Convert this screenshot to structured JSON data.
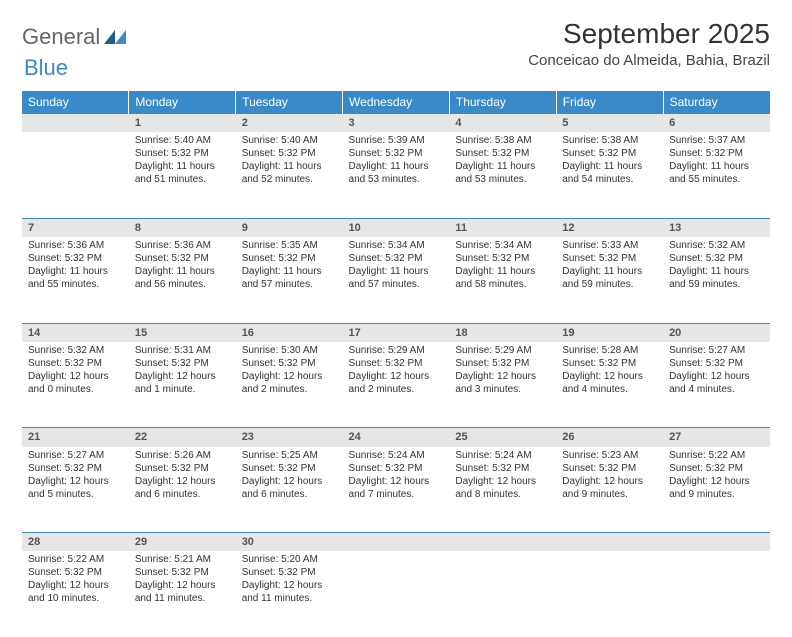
{
  "logo": {
    "text1": "General",
    "text2": "Blue"
  },
  "title": "September 2025",
  "location": "Conceicao do Almeida, Bahia, Brazil",
  "colors": {
    "header_bg": "#3a8ac9",
    "header_text": "#ffffff",
    "daynum_bg": "#e6e6e6",
    "body_text": "#333333",
    "page_bg": "#ffffff"
  },
  "weekdays": [
    "Sunday",
    "Monday",
    "Tuesday",
    "Wednesday",
    "Thursday",
    "Friday",
    "Saturday"
  ],
  "weeks": [
    {
      "nums": [
        "",
        "1",
        "2",
        "3",
        "4",
        "5",
        "6"
      ],
      "cells": [
        null,
        {
          "sunrise": "Sunrise: 5:40 AM",
          "sunset": "Sunset: 5:32 PM",
          "daylight": "Daylight: 11 hours and 51 minutes."
        },
        {
          "sunrise": "Sunrise: 5:40 AM",
          "sunset": "Sunset: 5:32 PM",
          "daylight": "Daylight: 11 hours and 52 minutes."
        },
        {
          "sunrise": "Sunrise: 5:39 AM",
          "sunset": "Sunset: 5:32 PM",
          "daylight": "Daylight: 11 hours and 53 minutes."
        },
        {
          "sunrise": "Sunrise: 5:38 AM",
          "sunset": "Sunset: 5:32 PM",
          "daylight": "Daylight: 11 hours and 53 minutes."
        },
        {
          "sunrise": "Sunrise: 5:38 AM",
          "sunset": "Sunset: 5:32 PM",
          "daylight": "Daylight: 11 hours and 54 minutes."
        },
        {
          "sunrise": "Sunrise: 5:37 AM",
          "sunset": "Sunset: 5:32 PM",
          "daylight": "Daylight: 11 hours and 55 minutes."
        }
      ]
    },
    {
      "nums": [
        "7",
        "8",
        "9",
        "10",
        "11",
        "12",
        "13"
      ],
      "cells": [
        {
          "sunrise": "Sunrise: 5:36 AM",
          "sunset": "Sunset: 5:32 PM",
          "daylight": "Daylight: 11 hours and 55 minutes."
        },
        {
          "sunrise": "Sunrise: 5:36 AM",
          "sunset": "Sunset: 5:32 PM",
          "daylight": "Daylight: 11 hours and 56 minutes."
        },
        {
          "sunrise": "Sunrise: 5:35 AM",
          "sunset": "Sunset: 5:32 PM",
          "daylight": "Daylight: 11 hours and 57 minutes."
        },
        {
          "sunrise": "Sunrise: 5:34 AM",
          "sunset": "Sunset: 5:32 PM",
          "daylight": "Daylight: 11 hours and 57 minutes."
        },
        {
          "sunrise": "Sunrise: 5:34 AM",
          "sunset": "Sunset: 5:32 PM",
          "daylight": "Daylight: 11 hours and 58 minutes."
        },
        {
          "sunrise": "Sunrise: 5:33 AM",
          "sunset": "Sunset: 5:32 PM",
          "daylight": "Daylight: 11 hours and 59 minutes."
        },
        {
          "sunrise": "Sunrise: 5:32 AM",
          "sunset": "Sunset: 5:32 PM",
          "daylight": "Daylight: 11 hours and 59 minutes."
        }
      ]
    },
    {
      "nums": [
        "14",
        "15",
        "16",
        "17",
        "18",
        "19",
        "20"
      ],
      "cells": [
        {
          "sunrise": "Sunrise: 5:32 AM",
          "sunset": "Sunset: 5:32 PM",
          "daylight": "Daylight: 12 hours and 0 minutes."
        },
        {
          "sunrise": "Sunrise: 5:31 AM",
          "sunset": "Sunset: 5:32 PM",
          "daylight": "Daylight: 12 hours and 1 minute."
        },
        {
          "sunrise": "Sunrise: 5:30 AM",
          "sunset": "Sunset: 5:32 PM",
          "daylight": "Daylight: 12 hours and 2 minutes."
        },
        {
          "sunrise": "Sunrise: 5:29 AM",
          "sunset": "Sunset: 5:32 PM",
          "daylight": "Daylight: 12 hours and 2 minutes."
        },
        {
          "sunrise": "Sunrise: 5:29 AM",
          "sunset": "Sunset: 5:32 PM",
          "daylight": "Daylight: 12 hours and 3 minutes."
        },
        {
          "sunrise": "Sunrise: 5:28 AM",
          "sunset": "Sunset: 5:32 PM",
          "daylight": "Daylight: 12 hours and 4 minutes."
        },
        {
          "sunrise": "Sunrise: 5:27 AM",
          "sunset": "Sunset: 5:32 PM",
          "daylight": "Daylight: 12 hours and 4 minutes."
        }
      ]
    },
    {
      "nums": [
        "21",
        "22",
        "23",
        "24",
        "25",
        "26",
        "27"
      ],
      "cells": [
        {
          "sunrise": "Sunrise: 5:27 AM",
          "sunset": "Sunset: 5:32 PM",
          "daylight": "Daylight: 12 hours and 5 minutes."
        },
        {
          "sunrise": "Sunrise: 5:26 AM",
          "sunset": "Sunset: 5:32 PM",
          "daylight": "Daylight: 12 hours and 6 minutes."
        },
        {
          "sunrise": "Sunrise: 5:25 AM",
          "sunset": "Sunset: 5:32 PM",
          "daylight": "Daylight: 12 hours and 6 minutes."
        },
        {
          "sunrise": "Sunrise: 5:24 AM",
          "sunset": "Sunset: 5:32 PM",
          "daylight": "Daylight: 12 hours and 7 minutes."
        },
        {
          "sunrise": "Sunrise: 5:24 AM",
          "sunset": "Sunset: 5:32 PM",
          "daylight": "Daylight: 12 hours and 8 minutes."
        },
        {
          "sunrise": "Sunrise: 5:23 AM",
          "sunset": "Sunset: 5:32 PM",
          "daylight": "Daylight: 12 hours and 9 minutes."
        },
        {
          "sunrise": "Sunrise: 5:22 AM",
          "sunset": "Sunset: 5:32 PM",
          "daylight": "Daylight: 12 hours and 9 minutes."
        }
      ]
    },
    {
      "nums": [
        "28",
        "29",
        "30",
        "",
        "",
        "",
        ""
      ],
      "cells": [
        {
          "sunrise": "Sunrise: 5:22 AM",
          "sunset": "Sunset: 5:32 PM",
          "daylight": "Daylight: 12 hours and 10 minutes."
        },
        {
          "sunrise": "Sunrise: 5:21 AM",
          "sunset": "Sunset: 5:32 PM",
          "daylight": "Daylight: 12 hours and 11 minutes."
        },
        {
          "sunrise": "Sunrise: 5:20 AM",
          "sunset": "Sunset: 5:32 PM",
          "daylight": "Daylight: 12 hours and 11 minutes."
        },
        null,
        null,
        null,
        null
      ]
    }
  ]
}
